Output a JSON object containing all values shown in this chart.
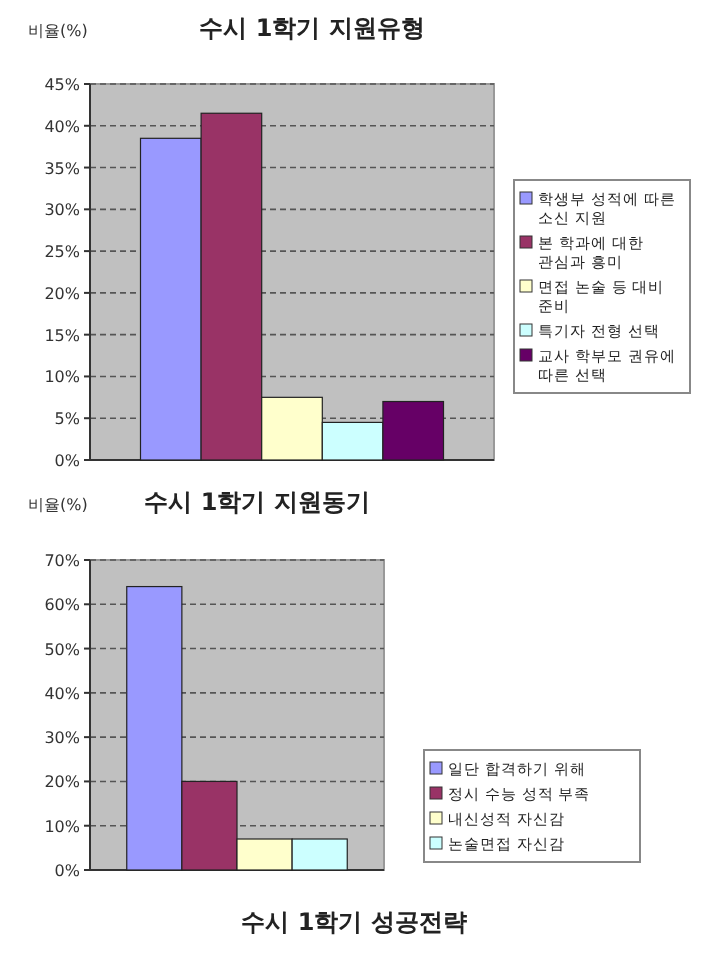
{
  "chart_data": [
    {
      "type": "bar",
      "title": "수시 1학기 지원유형",
      "ylabel": "비율(%)",
      "categories": [
        null
      ],
      "series": [
        {
          "name": "학생부 성적에 따른 소신 지원",
          "color": "#9999ff",
          "values": [
            38.5
          ]
        },
        {
          "name": "본 학과에 대한 관심과 흥미",
          "color": "#993366",
          "values": [
            41.5
          ]
        },
        {
          "name": "면접 논술 등 대비 준비",
          "color": "#ffffcc",
          "values": [
            7.5
          ]
        },
        {
          "name": "특기자 전형 선택",
          "color": "#ccffff",
          "values": [
            4.5
          ]
        },
        {
          "name": "교사 학부모 권유에 따른 선택",
          "color": "#660066",
          "values": [
            7
          ]
        }
      ],
      "ylim": [
        0,
        45
      ],
      "yticks": [
        {
          "value": 0,
          "label": "0%"
        },
        {
          "value": 5,
          "label": "5%"
        },
        {
          "value": 10,
          "label": "10%"
        },
        {
          "value": 15,
          "label": "15%"
        },
        {
          "value": 20,
          "label": "20%"
        },
        {
          "value": 25,
          "label": "25%"
        },
        {
          "value": 30,
          "label": "30%"
        },
        {
          "value": 35,
          "label": "35%"
        },
        {
          "value": 40,
          "label": "40%"
        },
        {
          "value": 45,
          "label": "45%"
        }
      ],
      "grid": "y",
      "line_style": "dashed",
      "legend": "right"
    },
    {
      "type": "bar",
      "title": "수시 1학기 지원동기",
      "ylabel": "비율(%)",
      "categories": [
        null
      ],
      "series": [
        {
          "name": "일단 합격하기 위해",
          "color": "#9999ff",
          "values": [
            64
          ]
        },
        {
          "name": "정시 수능 성적 부족",
          "color": "#993366",
          "values": [
            20
          ]
        },
        {
          "name": "내신성적 자신감",
          "color": "#ffffcc",
          "values": [
            7
          ]
        },
        {
          "name": "논술면접 자신감",
          "color": "#ccffff",
          "values": [
            7
          ]
        }
      ],
      "ylim": [
        0,
        70
      ],
      "yticks": [
        {
          "value": 0,
          "label": "0%"
        },
        {
          "value": 10,
          "label": "10%"
        },
        {
          "value": 20,
          "label": "20%"
        },
        {
          "value": 30,
          "label": "30%"
        },
        {
          "value": 40,
          "label": "40%"
        },
        {
          "value": 50,
          "label": "50%"
        },
        {
          "value": 60,
          "label": "60%"
        },
        {
          "value": 70,
          "label": "70%"
        }
      ],
      "grid": "y",
      "line_style": "dashed",
      "legend": "bottom right",
      "annotations": [
        "수시 1학기 성공전략"
      ]
    }
  ]
}
